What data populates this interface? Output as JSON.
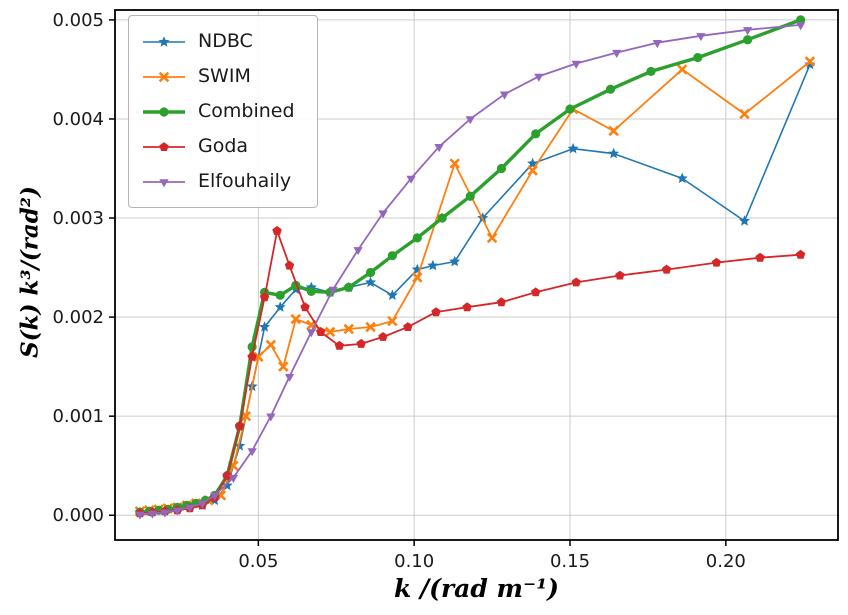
{
  "figure": {
    "background": "#ffffff",
    "frame_color": "#000000",
    "grid_color": "#cccccc",
    "tick_label_color": "#1a1a1a"
  },
  "chart_data": {
    "type": "line",
    "title": "",
    "xlabel": "k /(rad m⁻¹)",
    "ylabel": "S(k) k³/(rad²)",
    "xlim": [
      0.004,
      0.236
    ],
    "ylim": [
      -0.00025,
      0.0051
    ],
    "grid": true,
    "legend_position": "upper-left",
    "xticks": {
      "values": [
        0.05,
        0.1,
        0.15,
        0.2
      ],
      "labels": [
        "0.05",
        "0.10",
        "0.15",
        "0.20"
      ]
    },
    "yticks": {
      "values": [
        0.0,
        0.001,
        0.002,
        0.003,
        0.004,
        0.005
      ],
      "labels": [
        "0.000",
        "0.001",
        "0.002",
        "0.003",
        "0.004",
        "0.005"
      ]
    },
    "series": [
      {
        "name": "NDBC",
        "color": "#1f77b4",
        "marker": "star",
        "line_width": 1.6,
        "x": [
          0.012,
          0.016,
          0.02,
          0.024,
          0.028,
          0.032,
          0.036,
          0.04,
          0.044,
          0.048,
          0.052,
          0.057,
          0.062,
          0.067,
          0.073,
          0.079,
          0.086,
          0.093,
          0.101,
          0.106,
          0.113,
          0.122,
          0.138,
          0.151,
          0.164,
          0.186,
          0.206,
          0.227
        ],
        "y": [
          3e-05,
          4e-05,
          5e-05,
          6e-05,
          8e-05,
          0.0001,
          0.00015,
          0.0003,
          0.0007,
          0.0013,
          0.0019,
          0.0021,
          0.00228,
          0.0023,
          0.00225,
          0.0023,
          0.00235,
          0.00222,
          0.00248,
          0.00252,
          0.00256,
          0.003,
          0.00355,
          0.0037,
          0.00365,
          0.0034,
          0.00297,
          0.00455
        ]
      },
      {
        "name": "SWIM",
        "color": "#ff7f0e",
        "marker": "x",
        "line_width": 1.8,
        "x": [
          0.012,
          0.015,
          0.018,
          0.021,
          0.024,
          0.027,
          0.03,
          0.034,
          0.038,
          0.042,
          0.046,
          0.05,
          0.054,
          0.058,
          0.062,
          0.067,
          0.073,
          0.079,
          0.086,
          0.093,
          0.101,
          0.113,
          0.125,
          0.138,
          0.151,
          0.164,
          0.186,
          0.206,
          0.227
        ],
        "y": [
          4e-05,
          5e-05,
          6e-05,
          7e-05,
          8e-05,
          0.0001,
          0.00012,
          0.00015,
          0.0002,
          0.0005,
          0.001,
          0.0016,
          0.00172,
          0.0015,
          0.00198,
          0.00192,
          0.00185,
          0.00188,
          0.0019,
          0.00196,
          0.0024,
          0.00355,
          0.0028,
          0.00348,
          0.0041,
          0.00388,
          0.0045,
          0.00405,
          0.00458
        ]
      },
      {
        "name": "Combined",
        "color": "#2ca02c",
        "marker": "circle",
        "line_width": 3.4,
        "x": [
          0.012,
          0.015,
          0.018,
          0.021,
          0.024,
          0.027,
          0.03,
          0.033,
          0.036,
          0.04,
          0.044,
          0.048,
          0.052,
          0.057,
          0.062,
          0.067,
          0.073,
          0.079,
          0.086,
          0.093,
          0.101,
          0.109,
          0.118,
          0.128,
          0.139,
          0.15,
          0.163,
          0.176,
          0.191,
          0.207,
          0.224
        ],
        "y": [
          3e-05,
          4e-05,
          5e-05,
          6e-05,
          8e-05,
          0.0001,
          0.00012,
          0.00015,
          0.0002,
          0.0004,
          0.0009,
          0.0017,
          0.00225,
          0.00222,
          0.00232,
          0.00226,
          0.00225,
          0.0023,
          0.00245,
          0.00262,
          0.0028,
          0.003,
          0.00322,
          0.0035,
          0.00385,
          0.0041,
          0.0043,
          0.00448,
          0.00462,
          0.0048,
          0.005
        ]
      },
      {
        "name": "Goda",
        "color": "#d62728",
        "marker": "pentagon",
        "line_width": 1.8,
        "x": [
          0.012,
          0.016,
          0.02,
          0.024,
          0.028,
          0.032,
          0.036,
          0.04,
          0.044,
          0.048,
          0.052,
          0.056,
          0.06,
          0.065,
          0.07,
          0.076,
          0.083,
          0.09,
          0.098,
          0.107,
          0.117,
          0.128,
          0.139,
          0.152,
          0.166,
          0.181,
          0.197,
          0.211,
          0.224
        ],
        "y": [
          2e-05,
          3e-05,
          4e-05,
          5e-05,
          7e-05,
          0.0001,
          0.00018,
          0.0004,
          0.0009,
          0.0016,
          0.0022,
          0.00287,
          0.00252,
          0.0021,
          0.00185,
          0.00171,
          0.00173,
          0.0018,
          0.0019,
          0.00205,
          0.0021,
          0.00215,
          0.00225,
          0.00235,
          0.00242,
          0.00248,
          0.00255,
          0.0026,
          0.00263
        ]
      },
      {
        "name": "Elfouhaily",
        "color": "#9467bd",
        "marker": "triangle-down",
        "line_width": 1.8,
        "x": [
          0.012,
          0.016,
          0.02,
          0.024,
          0.028,
          0.032,
          0.036,
          0.042,
          0.048,
          0.054,
          0.06,
          0.067,
          0.074,
          0.082,
          0.09,
          0.099,
          0.108,
          0.118,
          0.129,
          0.14,
          0.152,
          0.165,
          0.178,
          0.192,
          0.207,
          0.224
        ],
        "y": [
          1e-05,
          2e-05,
          3e-05,
          5e-05,
          8e-05,
          0.00012,
          0.0002,
          0.00038,
          0.00065,
          0.001,
          0.0014,
          0.00185,
          0.00228,
          0.00268,
          0.00305,
          0.0034,
          0.00372,
          0.004,
          0.00425,
          0.00443,
          0.00456,
          0.00467,
          0.00477,
          0.00484,
          0.0049,
          0.00495
        ]
      }
    ]
  }
}
